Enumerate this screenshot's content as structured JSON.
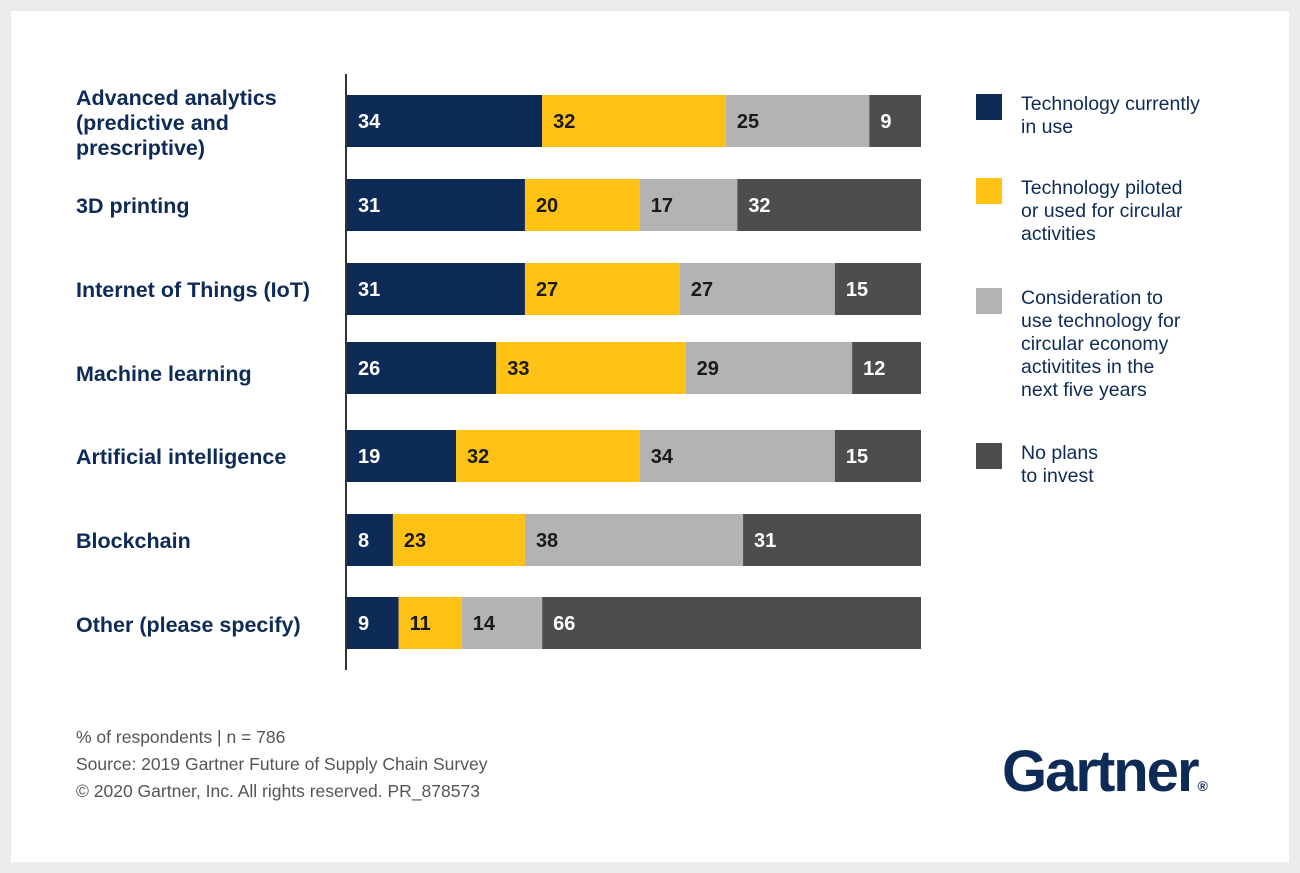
{
  "chart_data": {
    "type": "bar",
    "orientation": "horizontal",
    "stacked": true,
    "categories": [
      "Advanced analytics\n(predictive and\nprescriptive)",
      "3D printing",
      "Internet of Things (IoT)",
      "Machine learning",
      "Artificial intelligence",
      "Blockchain",
      "Other (please specify)"
    ],
    "series": [
      {
        "name": "Technology currently\nin use",
        "color": "#0d2b56",
        "values": [
          34,
          31,
          31,
          26,
          19,
          8,
          9
        ]
      },
      {
        "name": "Technology piloted\nor used for circular\nactivities",
        "color": "#fec214",
        "values": [
          32,
          20,
          27,
          33,
          32,
          23,
          11
        ]
      },
      {
        "name": "Consideration to\nuse technology for\ncircular economy\nactivitites in the\nnext five years",
        "color": "#b3b3b3",
        "values": [
          25,
          17,
          27,
          29,
          34,
          38,
          14
        ]
      },
      {
        "name": "No plans\nto invest",
        "color": "#4d4d4d",
        "values": [
          9,
          32,
          15,
          12,
          15,
          31,
          66
        ]
      }
    ],
    "label_colors": [
      "#ffffff",
      "#1a1a1a",
      "#1a1a1a",
      "#ffffff"
    ],
    "xlim": [
      0,
      100
    ],
    "legend_position": "right",
    "grid": false
  },
  "footnotes": {
    "line1": "% of respondents  |  n = 786",
    "line2": "Source: 2019 Gartner Future of Supply Chain Survey",
    "line3": "© 2020 Gartner, Inc. All rights reserved. PR_878573"
  },
  "logo": {
    "text": "Gartner",
    "mark": "®"
  }
}
